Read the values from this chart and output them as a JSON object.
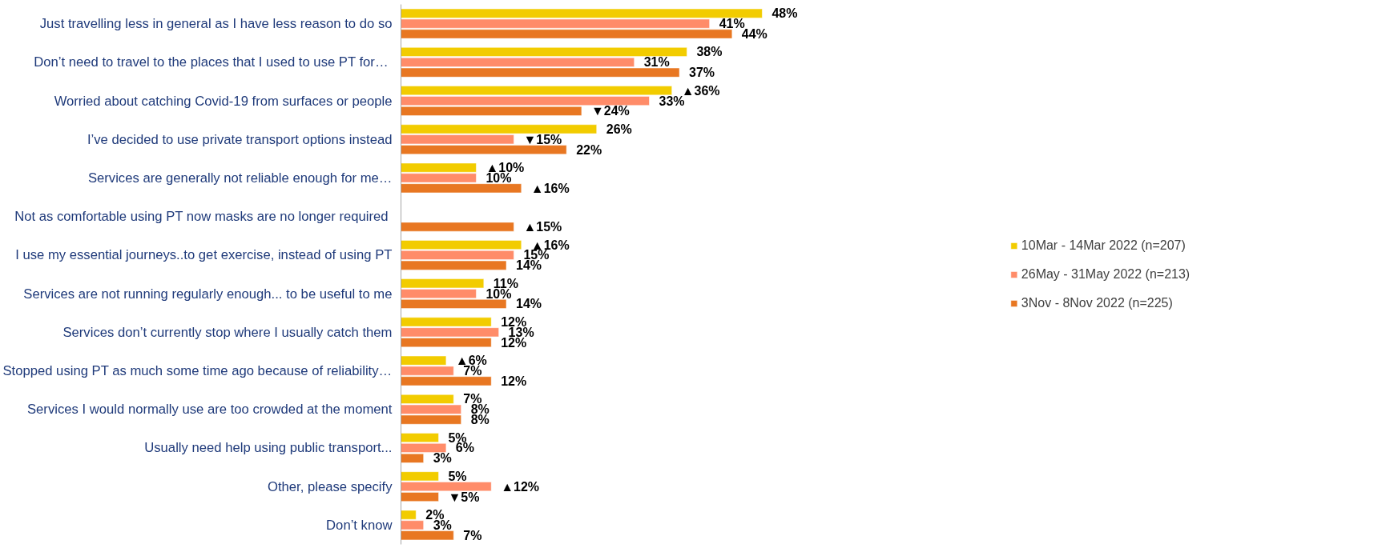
{
  "chart_data": {
    "type": "bar",
    "orientation": "horizontal",
    "categories": [
      "Just travelling less in general as I have less reason to do so",
      "Don’t need to travel to the places that I used to use PT  for…",
      "Worried about catching Covid-19 from surfaces or people",
      "I’ve decided to use private transport options instead",
      "Services are generally not reliable enough for me…",
      "Not as comfortable using PT now  masks are no longer required",
      "I use my essential journeys..to get exercise, instead of using PT",
      "Services are not running regularly enough... to be useful to me",
      "Services don’t currently stop where I usually catch them",
      "Stopped using PT as much some time ago because of reliability…",
      "Services I would normally use are too crowded at the moment",
      "Usually need help using public transport...",
      "Other, please specify",
      "Don’t know"
    ],
    "series": [
      {
        "name": "10Mar - 14Mar 2022 (n=207)",
        "color": "#f2cc00",
        "values": [
          48,
          38,
          36,
          26,
          10,
          null,
          16,
          11,
          12,
          6,
          7,
          5,
          5,
          2
        ],
        "value_labels": [
          "48%",
          "38%",
          "▲36%",
          "26%",
          "▲10%",
          null,
          "▲16%",
          "11%",
          "12%",
          "▲6%",
          "7%",
          "5%",
          "5%",
          "2%"
        ]
      },
      {
        "name": "26May - 31May 2022 (n=213)",
        "color": "#ff8c69",
        "values": [
          41,
          31,
          33,
          15,
          10,
          null,
          15,
          10,
          13,
          7,
          8,
          6,
          12,
          3
        ],
        "value_labels": [
          "41%",
          "31%",
          "33%",
          "▼15%",
          "10%",
          null,
          "15%",
          "10%",
          "13%",
          "7%",
          "8%",
          "6%",
          "▲12%",
          "3%"
        ]
      },
      {
        "name": "3Nov - 8Nov 2022 (n=225)",
        "color": "#e87722",
        "values": [
          44,
          37,
          24,
          22,
          16,
          15,
          14,
          14,
          12,
          12,
          8,
          3,
          5,
          7
        ],
        "value_labels": [
          "44%",
          "37%",
          "▼24%",
          "22%",
          "▲16%",
          "▲15%",
          "14%",
          "14%",
          "12%",
          "12%",
          "8%",
          "3%",
          "▼5%",
          "7%"
        ]
      }
    ],
    "legend": "right",
    "grid": false
  }
}
